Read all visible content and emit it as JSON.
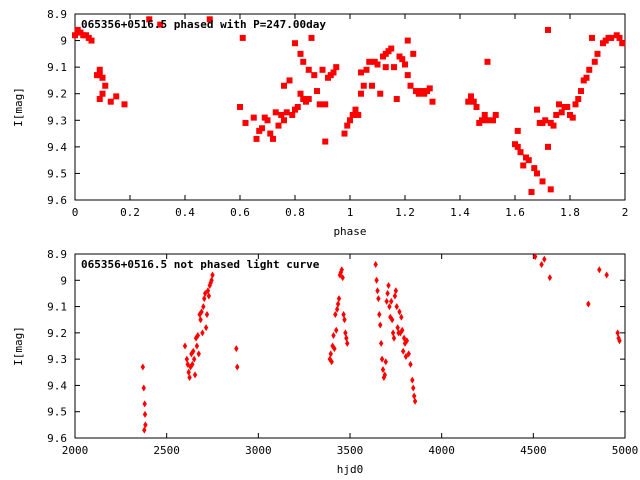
{
  "chart_data": [
    {
      "type": "scatter",
      "title": "065356+0516.5 phased with P=247.00day",
      "xlabel": "phase",
      "ylabel": "I[mag]",
      "xlim": [
        0,
        2
      ],
      "ylim": [
        9.6,
        8.9
      ],
      "y_inverted": true,
      "xticks": [
        "0",
        "0.2",
        "0.4",
        "0.6",
        "0.8",
        "1",
        "1.2",
        "1.4",
        "1.6",
        "1.8",
        "2"
      ],
      "yticks": [
        "8.9",
        "9",
        "9.1",
        "9.2",
        "9.3",
        "9.4",
        "9.5",
        "9.6"
      ],
      "marker": "filled-square",
      "color": "#ff0000",
      "points": [
        [
          0.0,
          8.98
        ],
        [
          0.01,
          8.96
        ],
        [
          0.02,
          8.97
        ],
        [
          0.03,
          8.98
        ],
        [
          0.04,
          8.98
        ],
        [
          0.05,
          8.99
        ],
        [
          0.06,
          9.0
        ],
        [
          0.08,
          9.13
        ],
        [
          0.09,
          9.13
        ],
        [
          0.09,
          9.11
        ],
        [
          0.1,
          9.14
        ],
        [
          0.09,
          9.22
        ],
        [
          0.1,
          9.2
        ],
        [
          0.11,
          9.17
        ],
        [
          0.13,
          9.23
        ],
        [
          0.15,
          9.21
        ],
        [
          0.18,
          9.24
        ],
        [
          0.27,
          8.92
        ],
        [
          0.31,
          8.94
        ],
        [
          0.49,
          8.92
        ],
        [
          0.6,
          9.25
        ],
        [
          0.61,
          8.99
        ],
        [
          0.62,
          9.31
        ],
        [
          0.65,
          9.29
        ],
        [
          0.66,
          9.37
        ],
        [
          0.67,
          9.34
        ],
        [
          0.68,
          9.33
        ],
        [
          0.69,
          9.29
        ],
        [
          0.7,
          9.3
        ],
        [
          0.71,
          9.35
        ],
        [
          0.72,
          9.37
        ],
        [
          0.73,
          9.27
        ],
        [
          0.74,
          9.32
        ],
        [
          0.75,
          9.28
        ],
        [
          0.76,
          9.17
        ],
        [
          0.76,
          9.3
        ],
        [
          0.77,
          9.27
        ],
        [
          0.78,
          9.15
        ],
        [
          0.79,
          9.28
        ],
        [
          0.8,
          9.01
        ],
        [
          0.8,
          9.26
        ],
        [
          0.81,
          9.25
        ],
        [
          0.82,
          9.05
        ],
        [
          0.82,
          9.2
        ],
        [
          0.83,
          9.22
        ],
        [
          0.83,
          9.08
        ],
        [
          0.84,
          9.23
        ],
        [
          0.85,
          9.22
        ],
        [
          0.85,
          9.11
        ],
        [
          0.86,
          8.99
        ],
        [
          0.87,
          9.13
        ],
        [
          0.88,
          9.19
        ],
        [
          0.89,
          9.24
        ],
        [
          0.9,
          9.11
        ],
        [
          0.91,
          9.24
        ],
        [
          0.91,
          9.38
        ],
        [
          0.92,
          9.14
        ],
        [
          0.93,
          9.13
        ],
        [
          0.94,
          9.12
        ],
        [
          0.95,
          9.1
        ],
        [
          0.98,
          9.35
        ],
        [
          0.99,
          9.32
        ],
        [
          1.0,
          9.3
        ],
        [
          1.01,
          9.28
        ],
        [
          1.02,
          9.26
        ],
        [
          1.03,
          9.28
        ],
        [
          1.04,
          9.2
        ],
        [
          1.04,
          9.12
        ],
        [
          1.05,
          9.17
        ],
        [
          1.06,
          9.11
        ],
        [
          1.07,
          9.08
        ],
        [
          1.08,
          9.17
        ],
        [
          1.09,
          9.08
        ],
        [
          1.1,
          9.09
        ],
        [
          1.11,
          9.2
        ],
        [
          1.12,
          9.06
        ],
        [
          1.13,
          9.05
        ],
        [
          1.13,
          9.1
        ],
        [
          1.14,
          9.04
        ],
        [
          1.15,
          9.03
        ],
        [
          1.16,
          9.1
        ],
        [
          1.17,
          9.22
        ],
        [
          1.18,
          9.06
        ],
        [
          1.19,
          9.07
        ],
        [
          1.2,
          9.09
        ],
        [
          1.21,
          9.13
        ],
        [
          1.21,
          9.0
        ],
        [
          1.22,
          9.17
        ],
        [
          1.23,
          9.05
        ],
        [
          1.24,
          9.19
        ],
        [
          1.25,
          9.2
        ],
        [
          1.26,
          9.19
        ],
        [
          1.27,
          9.2
        ],
        [
          1.28,
          9.19
        ],
        [
          1.29,
          9.18
        ],
        [
          1.3,
          9.23
        ],
        [
          1.43,
          9.23
        ],
        [
          1.44,
          9.21
        ],
        [
          1.45,
          9.23
        ],
        [
          1.46,
          9.25
        ],
        [
          1.47,
          9.31
        ],
        [
          1.48,
          9.3
        ],
        [
          1.49,
          9.28
        ],
        [
          1.5,
          9.08
        ],
        [
          1.5,
          9.3
        ],
        [
          1.52,
          9.3
        ],
        [
          1.53,
          9.28
        ],
        [
          1.6,
          9.39
        ],
        [
          1.61,
          9.34
        ],
        [
          1.61,
          9.4
        ],
        [
          1.62,
          9.42
        ],
        [
          1.63,
          9.47
        ],
        [
          1.64,
          9.44
        ],
        [
          1.65,
          9.45
        ],
        [
          1.66,
          9.57
        ],
        [
          1.67,
          9.48
        ],
        [
          1.68,
          9.5
        ],
        [
          1.68,
          9.26
        ],
        [
          1.69,
          9.31
        ],
        [
          1.7,
          9.31
        ],
        [
          1.7,
          9.53
        ],
        [
          1.71,
          9.3
        ],
        [
          1.72,
          9.4
        ],
        [
          1.72,
          8.96
        ],
        [
          1.73,
          9.56
        ],
        [
          1.73,
          9.31
        ],
        [
          1.74,
          9.32
        ],
        [
          1.75,
          9.28
        ],
        [
          1.76,
          9.24
        ],
        [
          1.77,
          9.27
        ],
        [
          1.78,
          9.25
        ],
        [
          1.79,
          9.25
        ],
        [
          1.8,
          9.28
        ],
        [
          1.81,
          9.29
        ],
        [
          1.82,
          9.24
        ],
        [
          1.83,
          9.22
        ],
        [
          1.84,
          9.19
        ],
        [
          1.85,
          9.15
        ],
        [
          1.86,
          9.14
        ],
        [
          1.87,
          9.11
        ],
        [
          1.88,
          8.99
        ],
        [
          1.89,
          9.08
        ],
        [
          1.9,
          9.05
        ],
        [
          1.92,
          9.01
        ],
        [
          1.93,
          9.0
        ],
        [
          1.94,
          8.99
        ],
        [
          1.95,
          8.99
        ],
        [
          1.97,
          8.98
        ],
        [
          1.98,
          8.99
        ],
        [
          1.99,
          9.01
        ]
      ]
    },
    {
      "type": "scatter",
      "title": "065356+0516.5 not phased light curve",
      "xlabel": "hjd0",
      "ylabel": "I[mag]",
      "xlim": [
        2000,
        5000
      ],
      "ylim": [
        9.6,
        8.9
      ],
      "y_inverted": true,
      "xticks": [
        "2000",
        "2500",
        "3000",
        "3500",
        "4000",
        "4500",
        "5000"
      ],
      "yticks": [
        "8.9",
        "9",
        "9.1",
        "9.2",
        "9.3",
        "9.4",
        "9.5",
        "9.6"
      ],
      "marker": "filled-diamond",
      "color": "#ff0000",
      "points": [
        [
          2370,
          9.33
        ],
        [
          2375,
          9.41
        ],
        [
          2380,
          9.47
        ],
        [
          2382,
          9.51
        ],
        [
          2384,
          9.55
        ],
        [
          2378,
          9.57
        ],
        [
          2600,
          9.25
        ],
        [
          2610,
          9.3
        ],
        [
          2615,
          9.32
        ],
        [
          2620,
          9.35
        ],
        [
          2625,
          9.37
        ],
        [
          2630,
          9.33
        ],
        [
          2635,
          9.28
        ],
        [
          2640,
          9.32
        ],
        [
          2645,
          9.27
        ],
        [
          2650,
          9.3
        ],
        [
          2655,
          9.36
        ],
        [
          2660,
          9.22
        ],
        [
          2665,
          9.25
        ],
        [
          2670,
          9.21
        ],
        [
          2675,
          9.28
        ],
        [
          2680,
          9.13
        ],
        [
          2685,
          9.15
        ],
        [
          2690,
          9.12
        ],
        [
          2695,
          9.2
        ],
        [
          2700,
          9.1
        ],
        [
          2705,
          9.07
        ],
        [
          2710,
          9.05
        ],
        [
          2715,
          9.18
        ],
        [
          2720,
          9.13
        ],
        [
          2725,
          9.04
        ],
        [
          2730,
          9.06
        ],
        [
          2735,
          9.02
        ],
        [
          2740,
          9.01
        ],
        [
          2745,
          9.0
        ],
        [
          2750,
          8.98
        ],
        [
          2880,
          9.26
        ],
        [
          2885,
          9.33
        ],
        [
          3390,
          9.3
        ],
        [
          3395,
          9.28
        ],
        [
          3400,
          9.31
        ],
        [
          3405,
          9.25
        ],
        [
          3410,
          9.21
        ],
        [
          3415,
          9.26
        ],
        [
          3420,
          9.13
        ],
        [
          3425,
          9.19
        ],
        [
          3430,
          9.11
        ],
        [
          3435,
          9.09
        ],
        [
          3440,
          9.07
        ],
        [
          3445,
          8.98
        ],
        [
          3450,
          8.97
        ],
        [
          3455,
          8.96
        ],
        [
          3460,
          8.99
        ],
        [
          3465,
          9.13
        ],
        [
          3470,
          9.15
        ],
        [
          3475,
          9.2
        ],
        [
          3480,
          9.22
        ],
        [
          3485,
          9.24
        ],
        [
          3640,
          8.94
        ],
        [
          3645,
          9.0
        ],
        [
          3650,
          9.04
        ],
        [
          3655,
          9.07
        ],
        [
          3660,
          9.13
        ],
        [
          3665,
          9.17
        ],
        [
          3670,
          9.24
        ],
        [
          3675,
          9.3
        ],
        [
          3680,
          9.34
        ],
        [
          3685,
          9.37
        ],
        [
          3690,
          9.36
        ],
        [
          3695,
          9.31
        ],
        [
          3700,
          9.08
        ],
        [
          3705,
          9.05
        ],
        [
          3710,
          9.02
        ],
        [
          3715,
          9.1
        ],
        [
          3720,
          9.14
        ],
        [
          3725,
          9.08
        ],
        [
          3730,
          9.15
        ],
        [
          3735,
          9.2
        ],
        [
          3740,
          9.22
        ],
        [
          3745,
          9.06
        ],
        [
          3750,
          9.04
        ],
        [
          3755,
          9.1
        ],
        [
          3760,
          9.18
        ],
        [
          3765,
          9.2
        ],
        [
          3770,
          9.12
        ],
        [
          3775,
          9.2
        ],
        [
          3780,
          9.14
        ],
        [
          3785,
          9.19
        ],
        [
          3790,
          9.27
        ],
        [
          3795,
          9.22
        ],
        [
          3800,
          9.24
        ],
        [
          3805,
          9.29
        ],
        [
          3810,
          9.23
        ],
        [
          3820,
          9.28
        ],
        [
          3830,
          9.32
        ],
        [
          3840,
          9.38
        ],
        [
          3845,
          9.41
        ],
        [
          3850,
          9.44
        ],
        [
          3855,
          9.46
        ],
        [
          4510,
          8.91
        ],
        [
          4545,
          8.94
        ],
        [
          4560,
          8.92
        ],
        [
          4590,
          8.99
        ],
        [
          4800,
          9.09
        ],
        [
          4860,
          8.96
        ],
        [
          4900,
          8.98
        ],
        [
          4960,
          9.2
        ],
        [
          4965,
          9.22
        ],
        [
          4970,
          9.23
        ]
      ]
    }
  ]
}
